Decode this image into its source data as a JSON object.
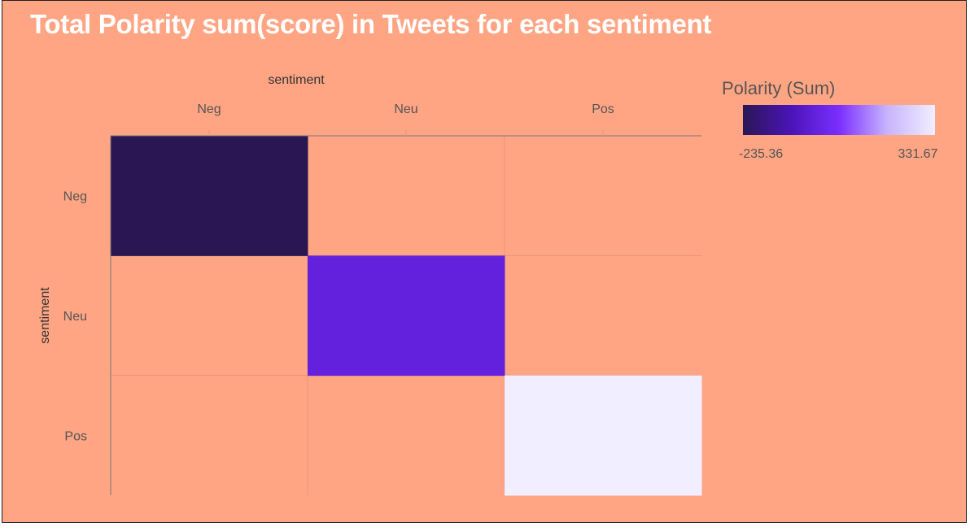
{
  "chart_data": {
    "type": "heatmap",
    "title": "Total Polarity sum(score) in Tweets for each sentiment",
    "x_categories": [
      "Neg",
      "Neu",
      "Pos"
    ],
    "y_categories": [
      "Neg",
      "Neu",
      "Pos"
    ],
    "xlabel": "sentiment",
    "ylabel": "sentiment",
    "x_axis_position": "top",
    "cells": [
      {
        "x": "Neg",
        "y": "Neg",
        "value": -235.36
      },
      {
        "x": "Neu",
        "y": "Neu",
        "value": -20
      },
      {
        "x": "Pos",
        "y": "Pos",
        "value": 331.67
      }
    ],
    "colorbar": {
      "title": "Polarity (Sum)",
      "min": -235.36,
      "max": 331.67,
      "min_label": "-235.36",
      "max_label": "331.67",
      "colors": [
        "#2B1654",
        "#4A14B8",
        "#7B2EFF",
        "#C7B4FF",
        "#F1EEFF"
      ]
    },
    "empty_cell_color": "#FFA584",
    "legend_position": "top-right",
    "grid": true
  }
}
